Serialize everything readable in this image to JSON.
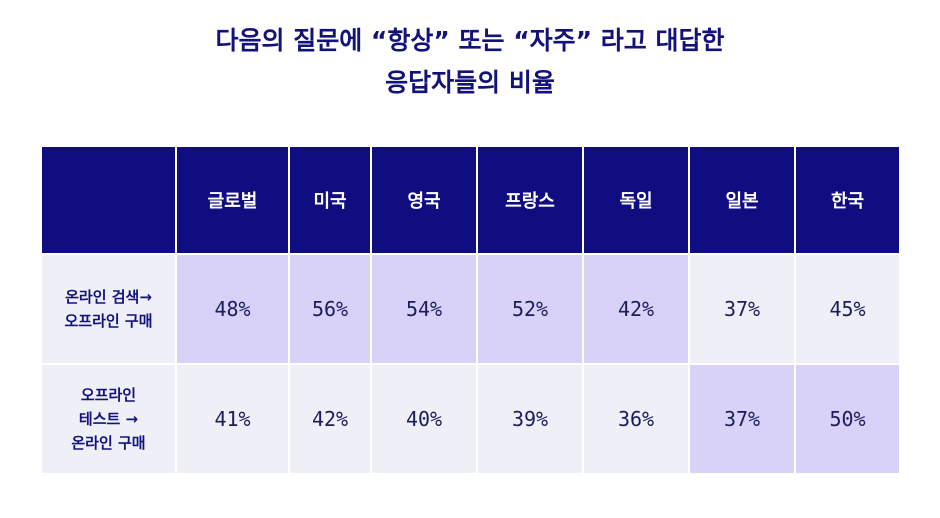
{
  "title": {
    "line1": "다음의 질문에 “항상” 또는 “자주” 라고 대답한",
    "line2": "응답자들의 비율"
  },
  "chart_data": {
    "type": "table",
    "columns": [
      "글로벌",
      "미국",
      "영국",
      "프랑스",
      "독일",
      "일본",
      "한국"
    ],
    "rows": [
      {
        "label_lines": [
          "온라인 검색→",
          "오프라인 구매"
        ],
        "values": [
          "48%",
          "56%",
          "54%",
          "52%",
          "42%",
          "37%",
          "45%"
        ],
        "highlighted": [
          true,
          true,
          true,
          true,
          true,
          false,
          false
        ]
      },
      {
        "label_lines": [
          "오프라인",
          "테스트 →",
          "온라인 구매"
        ],
        "values": [
          "41%",
          "42%",
          "40%",
          "39%",
          "36%",
          "37%",
          "50%"
        ],
        "highlighted": [
          false,
          false,
          false,
          false,
          false,
          true,
          true
        ]
      }
    ]
  },
  "colors": {
    "header_bg": "#100d80",
    "cell_bg": "#eeeff7",
    "highlight_bg": "#d8d2f8",
    "text": "#13127a"
  }
}
